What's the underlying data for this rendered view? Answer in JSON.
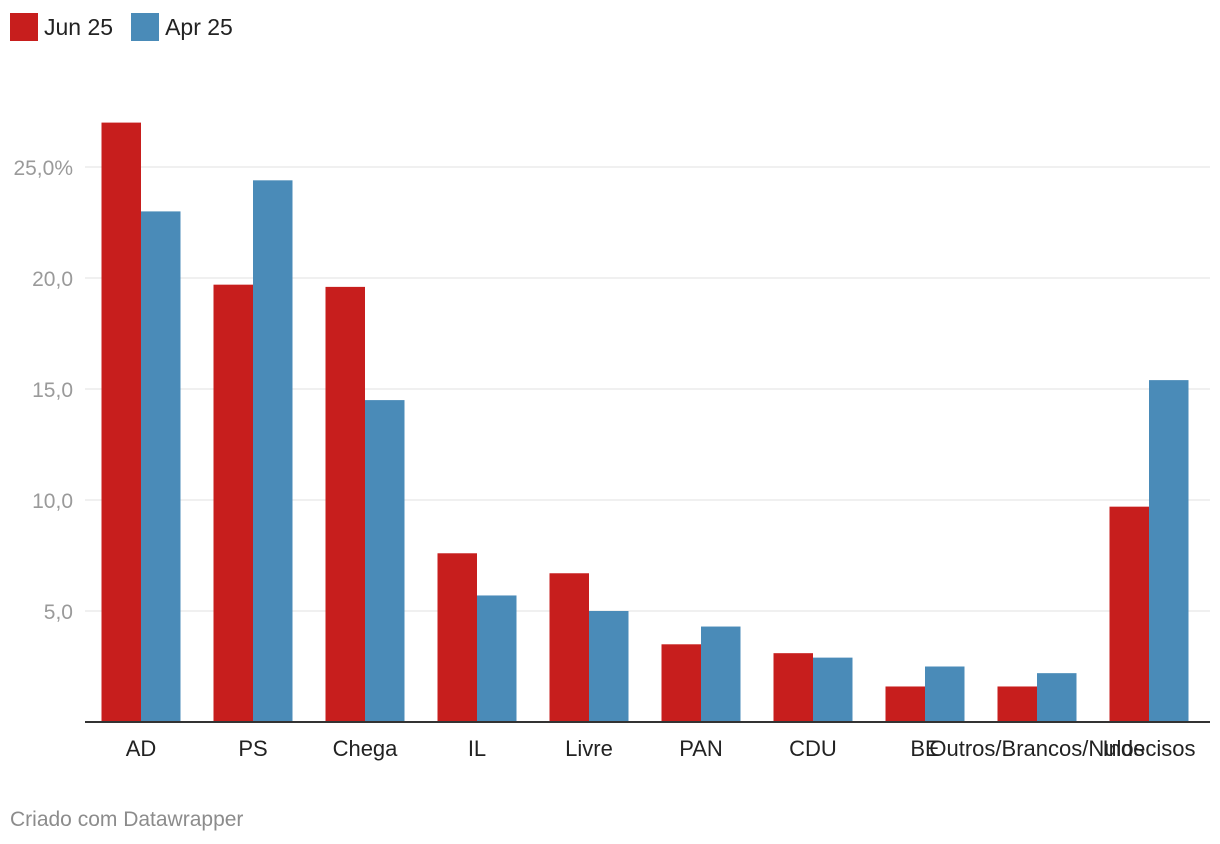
{
  "legend": {
    "series_a": {
      "label": "Jun 25",
      "color": "#c71e1d"
    },
    "series_b": {
      "label": "Apr 25",
      "color": "#4a8bb8"
    }
  },
  "footer": {
    "credit": "Criado com Datawrapper"
  },
  "chart_data": {
    "type": "bar",
    "title": "",
    "xlabel": "",
    "ylabel": "",
    "ylim": [
      0,
      30
    ],
    "yticks": [
      5,
      10,
      15,
      20,
      25
    ],
    "ytick_labels": [
      "5,0",
      "10,0",
      "15,0",
      "20,0",
      "25,0%"
    ],
    "grid": true,
    "legend_position": "top-left",
    "categories": [
      "AD",
      "PS",
      "Chega",
      "IL",
      "Livre",
      "PAN",
      "CDU",
      "BE",
      "Outros/Brancos/Nulos",
      "Indecisos"
    ],
    "series": [
      {
        "name": "Jun 25",
        "color": "#c71e1d",
        "values": [
          27.0,
          19.7,
          19.6,
          7.6,
          6.7,
          3.5,
          3.1,
          1.6,
          1.6,
          9.7
        ]
      },
      {
        "name": "Apr 25",
        "color": "#4a8bb8",
        "values": [
          23.0,
          24.4,
          14.5,
          5.7,
          5.0,
          4.3,
          2.9,
          2.5,
          2.2,
          15.4
        ]
      }
    ]
  }
}
